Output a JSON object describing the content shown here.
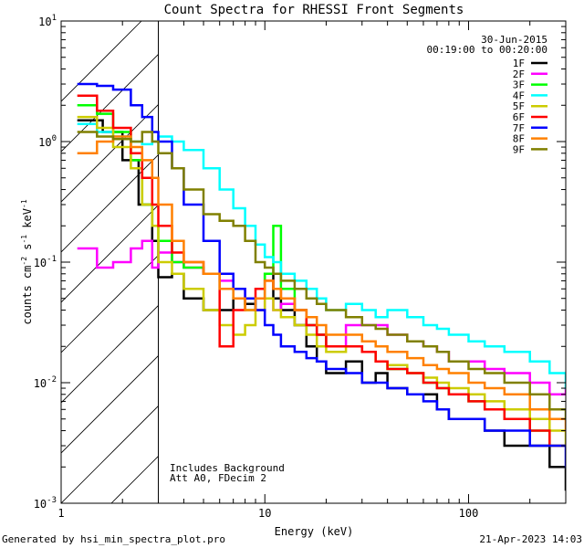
{
  "chart_data": {
    "type": "line",
    "title": "Count Spectra for RHESSI Front Segments",
    "xlabel": "Energy (keV)",
    "ylabel": "counts cm",
    "ylabel_sup1": "-2",
    "ylabel_mid": " s",
    "ylabel_sup2": "-1",
    "ylabel_end": " keV",
    "ylabel_sup3": "-1",
    "x_scale": "log",
    "y_scale": "log",
    "xlim": [
      1,
      300
    ],
    "ylim": [
      0.001,
      10
    ],
    "x_tick_labels": [
      "1",
      "10",
      "100"
    ],
    "y_tick_labels": [
      {
        "base": "10",
        "exp": "-3",
        "value": 0.001
      },
      {
        "base": "10",
        "exp": "-2",
        "value": 0.01
      },
      {
        "base": "10",
        "exp": "-1",
        "value": 0.1
      },
      {
        "base": "10",
        "exp": "0",
        "value": 1
      },
      {
        "base": "10",
        "exp": "1",
        "value": 10
      }
    ],
    "date": "30-Jun-2015",
    "time_range": "00:19:00 to 00:20:00",
    "annotations": [
      "Includes Background",
      "Att A0, FDecim 2"
    ],
    "hatched_below_keV": 3,
    "legend_position": "top-right",
    "footer_left": "Generated by hsi_min_spectra_plot.pro",
    "footer_right": "21-Apr-2023 14:03",
    "series": [
      {
        "name": "1F",
        "color": "#000000",
        "x": [
          1.2,
          1.6,
          2,
          2.4,
          2.8,
          3,
          3.5,
          4,
          5,
          6,
          7,
          8,
          9,
          10,
          11,
          12,
          14,
          16,
          18,
          20,
          25,
          30,
          35,
          40,
          50,
          60,
          70,
          80,
          100,
          120,
          150,
          200,
          250,
          300
        ],
        "values": [
          1.5,
          1.2,
          0.7,
          0.3,
          0.15,
          0.075,
          0.08,
          0.05,
          0.04,
          0.04,
          0.05,
          0.045,
          0.05,
          0.08,
          0.05,
          0.04,
          0.03,
          0.02,
          0.015,
          0.012,
          0.015,
          0.01,
          0.012,
          0.009,
          0.008,
          0.008,
          0.006,
          0.005,
          0.005,
          0.004,
          0.003,
          0.003,
          0.002,
          0.0013
        ]
      },
      {
        "name": "2F",
        "color": "#ff00ff",
        "x": [
          1.2,
          1.5,
          1.8,
          2.2,
          2.5,
          2.8,
          3,
          3.5,
          4,
          5,
          6,
          7,
          8,
          9,
          10,
          11,
          12,
          14,
          16,
          18,
          20,
          25,
          30,
          35,
          40,
          50,
          60,
          70,
          80,
          100,
          120,
          150,
          200,
          250,
          300
        ],
        "values": [
          0.13,
          0.09,
          0.1,
          0.13,
          0.15,
          0.09,
          0.12,
          0.1,
          0.09,
          0.08,
          0.07,
          0.06,
          0.05,
          0.04,
          0.05,
          0.04,
          0.045,
          0.04,
          0.03,
          0.025,
          0.02,
          0.03,
          0.03,
          0.03,
          0.025,
          0.022,
          0.02,
          0.018,
          0.015,
          0.015,
          0.013,
          0.012,
          0.01,
          0.008,
          0.009
        ]
      },
      {
        "name": "3F",
        "color": "#00ff00",
        "x": [
          1.2,
          1.5,
          1.8,
          2.2,
          2.5,
          2.8,
          3,
          3.5,
          4,
          5,
          6,
          7,
          8,
          9,
          10,
          11,
          12,
          14,
          16,
          18,
          20,
          25,
          30,
          35,
          40,
          50,
          60,
          70,
          80,
          100,
          120,
          150,
          200,
          250,
          300
        ],
        "values": [
          2.0,
          1.7,
          1.2,
          0.7,
          0.3,
          0.2,
          0.15,
          0.1,
          0.09,
          0.08,
          0.06,
          0.05,
          0.04,
          0.05,
          0.08,
          0.2,
          0.06,
          0.04,
          0.03,
          0.025,
          0.02,
          0.02,
          0.018,
          0.015,
          0.013,
          0.012,
          0.01,
          0.009,
          0.008,
          0.007,
          0.006,
          0.005,
          0.004,
          0.003,
          0.003
        ]
      },
      {
        "name": "4F",
        "color": "#00ffff",
        "x": [
          1.2,
          1.5,
          1.8,
          2.2,
          2.5,
          2.8,
          3,
          3.5,
          4,
          5,
          6,
          7,
          8,
          9,
          10,
          11,
          12,
          14,
          16,
          18,
          20,
          25,
          30,
          35,
          40,
          50,
          60,
          70,
          80,
          100,
          120,
          150,
          200,
          250,
          300
        ],
        "values": [
          1.4,
          1.2,
          1.1,
          1.0,
          0.95,
          1.0,
          1.1,
          1.0,
          0.85,
          0.6,
          0.4,
          0.28,
          0.2,
          0.14,
          0.11,
          0.1,
          0.08,
          0.07,
          0.06,
          0.05,
          0.04,
          0.045,
          0.04,
          0.035,
          0.04,
          0.035,
          0.03,
          0.028,
          0.025,
          0.022,
          0.02,
          0.018,
          0.015,
          0.012,
          0.009
        ]
      },
      {
        "name": "5F",
        "color": "#cccc00",
        "x": [
          1.2,
          1.5,
          1.8,
          2.2,
          2.5,
          2.8,
          3,
          3.5,
          4,
          5,
          6,
          7,
          8,
          9,
          10,
          11,
          12,
          14,
          16,
          18,
          20,
          25,
          30,
          35,
          40,
          50,
          60,
          70,
          80,
          100,
          120,
          150,
          200,
          250,
          300
        ],
        "values": [
          1.6,
          1.3,
          0.9,
          0.6,
          0.3,
          0.2,
          0.1,
          0.08,
          0.06,
          0.04,
          0.03,
          0.025,
          0.03,
          0.04,
          0.05,
          0.04,
          0.035,
          0.03,
          0.025,
          0.02,
          0.018,
          0.02,
          0.018,
          0.015,
          0.014,
          0.012,
          0.011,
          0.01,
          0.009,
          0.008,
          0.007,
          0.006,
          0.005,
          0.004,
          0.003
        ]
      },
      {
        "name": "6F",
        "color": "#ff0000",
        "x": [
          1.2,
          1.5,
          1.8,
          2.2,
          2.5,
          2.8,
          3,
          3.5,
          4,
          5,
          6,
          7,
          8,
          9,
          10,
          11,
          12,
          14,
          16,
          18,
          20,
          25,
          30,
          35,
          40,
          50,
          60,
          70,
          80,
          100,
          120,
          150,
          200,
          250,
          300
        ],
        "values": [
          2.4,
          1.8,
          1.3,
          0.8,
          0.5,
          0.3,
          0.2,
          0.12,
          0.1,
          0.08,
          0.02,
          0.04,
          0.05,
          0.06,
          0.07,
          0.06,
          0.05,
          0.04,
          0.03,
          0.025,
          0.02,
          0.02,
          0.018,
          0.015,
          0.013,
          0.012,
          0.01,
          0.009,
          0.008,
          0.007,
          0.006,
          0.005,
          0.004,
          0.003,
          0.003
        ]
      },
      {
        "name": "7F",
        "color": "#0000ff",
        "x": [
          1.2,
          1.5,
          1.8,
          2.2,
          2.5,
          2.8,
          3,
          3.5,
          4,
          5,
          6,
          7,
          8,
          9,
          10,
          11,
          12,
          14,
          16,
          18,
          20,
          25,
          30,
          35,
          40,
          50,
          60,
          70,
          80,
          100,
          120,
          150,
          200,
          250,
          300
        ],
        "values": [
          3.0,
          2.9,
          2.7,
          2.0,
          1.6,
          1.2,
          1.0,
          0.6,
          0.3,
          0.15,
          0.08,
          0.06,
          0.05,
          0.04,
          0.03,
          0.025,
          0.02,
          0.018,
          0.016,
          0.015,
          0.013,
          0.012,
          0.01,
          0.01,
          0.009,
          0.008,
          0.007,
          0.006,
          0.005,
          0.005,
          0.004,
          0.004,
          0.003,
          0.003,
          0.002
        ]
      },
      {
        "name": "8F",
        "color": "#ff8000",
        "x": [
          1.2,
          1.5,
          1.8,
          2.2,
          2.5,
          2.8,
          3,
          3.5,
          4,
          5,
          6,
          7,
          8,
          9,
          10,
          11,
          12,
          14,
          16,
          18,
          20,
          25,
          30,
          35,
          40,
          50,
          60,
          70,
          80,
          100,
          120,
          150,
          200,
          250,
          300
        ],
        "values": [
          0.8,
          1.0,
          1.1,
          0.9,
          0.7,
          0.5,
          0.3,
          0.15,
          0.1,
          0.08,
          0.06,
          0.05,
          0.04,
          0.05,
          0.07,
          0.06,
          0.05,
          0.04,
          0.035,
          0.03,
          0.025,
          0.025,
          0.022,
          0.02,
          0.018,
          0.016,
          0.014,
          0.013,
          0.012,
          0.01,
          0.009,
          0.008,
          0.006,
          0.005,
          0.004
        ]
      },
      {
        "name": "9F",
        "color": "#808000",
        "x": [
          1.2,
          1.5,
          1.8,
          2.2,
          2.5,
          2.8,
          3,
          3.5,
          4,
          5,
          6,
          7,
          8,
          9,
          10,
          11,
          12,
          14,
          16,
          18,
          20,
          25,
          30,
          35,
          40,
          50,
          60,
          70,
          80,
          100,
          120,
          150,
          200,
          250,
          300
        ],
        "values": [
          1.2,
          1.1,
          1.05,
          1.0,
          1.2,
          1.0,
          0.8,
          0.6,
          0.4,
          0.25,
          0.22,
          0.2,
          0.15,
          0.1,
          0.09,
          0.08,
          0.07,
          0.06,
          0.05,
          0.045,
          0.04,
          0.035,
          0.03,
          0.028,
          0.025,
          0.022,
          0.02,
          0.018,
          0.015,
          0.013,
          0.012,
          0.01,
          0.008,
          0.006,
          0.005
        ]
      }
    ]
  }
}
